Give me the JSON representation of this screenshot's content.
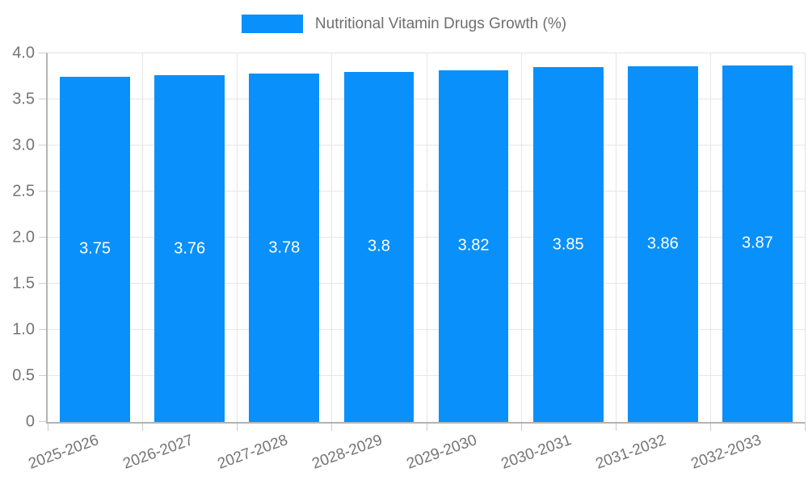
{
  "legend": {
    "label": "Nutritional Vitamin Drugs Growth (%)"
  },
  "chart_data": {
    "type": "bar",
    "title": "Nutritional Vitamin Drugs Growth (%)",
    "categories": [
      "2025-2026",
      "2026-2027",
      "2027-2028",
      "2028-2029",
      "2029-2030",
      "2030-2031",
      "2031-2032",
      "2032-2033"
    ],
    "values": [
      3.75,
      3.76,
      3.78,
      3.8,
      3.82,
      3.85,
      3.86,
      3.87
    ],
    "bar_value_labels": [
      "3.75",
      "3.76",
      "3.78",
      "3.8",
      "3.82",
      "3.85",
      "3.86",
      "3.87"
    ],
    "xlabel": "",
    "ylabel": "",
    "ylim": [
      0,
      4.0
    ],
    "ytick_step": 0.5,
    "ytick_labels": [
      "0",
      "0.5",
      "1.0",
      "1.5",
      "2.0",
      "2.5",
      "3.0",
      "3.5",
      "4.0"
    ],
    "grid": true,
    "legend_position": "top-center",
    "x_label_rotation_deg": -20
  },
  "colors": {
    "bar": "#0a90fa",
    "grid": "#e6e6e6",
    "axis": "#b3b3b3",
    "tick_text": "#757575",
    "bar_label_text": "#ffffff",
    "legend_text": "#6f6f6f"
  }
}
